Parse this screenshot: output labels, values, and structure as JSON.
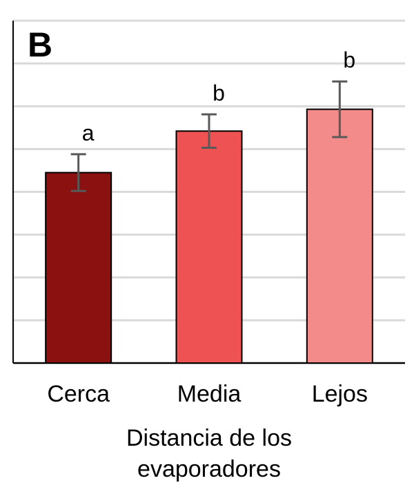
{
  "chart_data": {
    "type": "bar",
    "panel_label": "B",
    "categories": [
      "Cerca",
      "Media",
      "Lejos"
    ],
    "values": [
      4.45,
      5.42,
      5.93
    ],
    "error": [
      0.43,
      0.39,
      0.65
    ],
    "significance": [
      "a",
      "b",
      "b"
    ],
    "colors": [
      "#8b1010",
      "#ee5253",
      "#f28b89"
    ],
    "xlabel_lines": [
      "Distancia de los",
      "evaporadores"
    ],
    "ylabel": "",
    "ylim": [
      0,
      8
    ],
    "grid": true
  }
}
